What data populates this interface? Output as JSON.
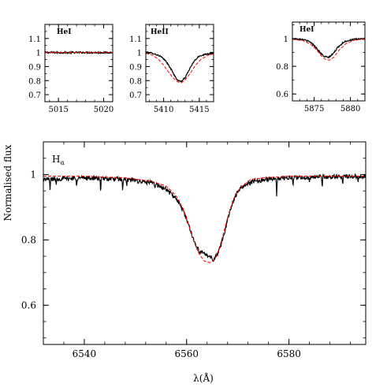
{
  "chart_data": [
    {
      "id": "hei5015",
      "type": "line",
      "label": "HeI",
      "xlim": [
        5013.5,
        5021.0
      ],
      "ylim": [
        0.65,
        1.2
      ],
      "xticks": [
        5015,
        5020
      ],
      "yticks": [
        0.7,
        0.8,
        0.9,
        1.0,
        1.1
      ],
      "ytick_labels": [
        "0.7",
        "0.8",
        "0.9",
        "1",
        "1.1"
      ],
      "show_ytick_labels": true,
      "series": [
        {
          "role": "observed",
          "color": "#000000",
          "style": "solid",
          "noise": 0.006,
          "x": [
            5013.5,
            5021.0
          ],
          "y": [
            1.0,
            1.0
          ]
        },
        {
          "role": "model",
          "color": "#ff0000",
          "style": "dashed",
          "x": [
            5013.5,
            5021.0
          ],
          "y": [
            1.0,
            1.0
          ]
        }
      ]
    },
    {
      "id": "heii5411",
      "type": "line",
      "label": "HeII",
      "xlim": [
        5407.5,
        5417.0
      ],
      "ylim": [
        0.65,
        1.2
      ],
      "xticks": [
        5410,
        5415
      ],
      "yticks": [
        0.7,
        0.8,
        0.9,
        1.0,
        1.1
      ],
      "ytick_labels": [
        "0.7",
        "0.8",
        "0.9",
        "1",
        "1.1"
      ],
      "show_ytick_labels": true,
      "series": [
        {
          "role": "observed",
          "color": "#000000",
          "style": "solid",
          "noise": 0.005,
          "x": [
            5407.5,
            5408.5,
            5409.5,
            5410.3,
            5411.0,
            5411.6,
            5412.0,
            5412.5,
            5413.0,
            5413.6,
            5414.3,
            5415.0,
            5416.0,
            5417.0
          ],
          "y": [
            1.0,
            0.995,
            0.975,
            0.94,
            0.885,
            0.83,
            0.8,
            0.795,
            0.82,
            0.88,
            0.94,
            0.975,
            0.99,
            0.995
          ]
        },
        {
          "role": "model",
          "color": "#ff0000",
          "style": "dashed",
          "x": [
            5407.5,
            5408.5,
            5409.3,
            5410.0,
            5410.7,
            5411.4,
            5412.0,
            5412.5,
            5413.0,
            5413.7,
            5414.4,
            5415.2,
            5416.2,
            5417.0
          ],
          "y": [
            0.995,
            0.98,
            0.95,
            0.91,
            0.86,
            0.815,
            0.79,
            0.785,
            0.805,
            0.85,
            0.905,
            0.95,
            0.98,
            0.99
          ]
        }
      ]
    },
    {
      "id": "hei5876",
      "type": "line",
      "label": "HeI",
      "xlim": [
        5872.0,
        5882.0
      ],
      "ylim": [
        0.55,
        1.12
      ],
      "xticks": [
        5875,
        5880
      ],
      "yticks": [
        0.6,
        0.8,
        1.0
      ],
      "ytick_labels": [
        "0.6",
        "0.8",
        "1"
      ],
      "show_ytick_labels": true,
      "series": [
        {
          "role": "observed",
          "color": "#000000",
          "style": "solid",
          "noise": 0.005,
          "x": [
            5872.0,
            5873.5,
            5874.5,
            5875.2,
            5875.8,
            5876.4,
            5877.0,
            5877.6,
            5878.3,
            5879.2,
            5880.5,
            5882.0
          ],
          "y": [
            1.0,
            0.995,
            0.975,
            0.94,
            0.9,
            0.87,
            0.865,
            0.89,
            0.94,
            0.98,
            0.995,
            1.0
          ]
        },
        {
          "role": "model",
          "color": "#ff0000",
          "style": "dashed",
          "x": [
            5872.0,
            5873.5,
            5874.5,
            5875.3,
            5876.0,
            5876.6,
            5877.1,
            5877.7,
            5878.4,
            5879.4,
            5880.6,
            5882.0
          ],
          "y": [
            0.995,
            0.985,
            0.96,
            0.92,
            0.875,
            0.848,
            0.845,
            0.865,
            0.915,
            0.965,
            0.99,
            0.998
          ]
        }
      ]
    },
    {
      "id": "halpha",
      "type": "line",
      "label": "Hα",
      "xlabel": "λ(Å)",
      "ylabel": "Normalised flux",
      "xlim": [
        6532.0,
        6595.0
      ],
      "ylim": [
        0.48,
        1.1
      ],
      "xticks": [
        6540,
        6560,
        6580
      ],
      "yticks": [
        0.6,
        0.8,
        1.0
      ],
      "ytick_labels": [
        "0.6",
        "0.8",
        "1"
      ],
      "show_ytick_labels": true,
      "series": [
        {
          "role": "observed",
          "color": "#000000",
          "style": "solid",
          "noise": 0.007,
          "spikes": [
            [
              6533.3,
              0.95
            ],
            [
              6534.5,
              0.965
            ],
            [
              6538.5,
              0.96
            ],
            [
              6543.2,
              0.935
            ],
            [
              6547.5,
              0.945
            ],
            [
              6548.3,
              0.96
            ],
            [
              6552.0,
              0.975
            ],
            [
              6553.8,
              0.96
            ],
            [
              6572.4,
              0.965
            ],
            [
              6574.5,
              0.975
            ],
            [
              6577.6,
              0.93
            ],
            [
              6580.8,
              0.96
            ],
            [
              6584.0,
              0.975
            ],
            [
              6586.5,
              0.955
            ],
            [
              6590.5,
              0.965
            ],
            [
              6593.5,
              0.97
            ]
          ],
          "x": [
            6532,
            6540,
            6548,
            6553,
            6556,
            6558,
            6559.5,
            6560.5,
            6561.5,
            6562.5,
            6563.5,
            6564.5,
            6565.3,
            6566.0,
            6567.0,
            6568.0,
            6569.0,
            6570.0,
            6572.0,
            6575.0,
            6580.0,
            6595.0
          ],
          "y": [
            0.985,
            0.99,
            0.985,
            0.975,
            0.955,
            0.925,
            0.885,
            0.84,
            0.795,
            0.765,
            0.755,
            0.75,
            0.74,
            0.755,
            0.8,
            0.86,
            0.915,
            0.95,
            0.975,
            0.985,
            0.99,
            0.995
          ]
        },
        {
          "role": "model",
          "color": "#ff0000",
          "style": "dashed",
          "x": [
            6532,
            6540,
            6548,
            6553,
            6556,
            6558,
            6559.5,
            6560.5,
            6561.5,
            6562.5,
            6563.5,
            6564.5,
            6565.5,
            6566.3,
            6567.2,
            6568.2,
            6569.3,
            6570.5,
            6572.5,
            6575.0,
            6580.0,
            6595.0
          ],
          "y": [
            0.995,
            0.995,
            0.99,
            0.98,
            0.965,
            0.935,
            0.89,
            0.84,
            0.79,
            0.755,
            0.735,
            0.73,
            0.74,
            0.77,
            0.82,
            0.88,
            0.93,
            0.96,
            0.985,
            0.99,
            0.995,
            0.995
          ]
        }
      ]
    }
  ]
}
